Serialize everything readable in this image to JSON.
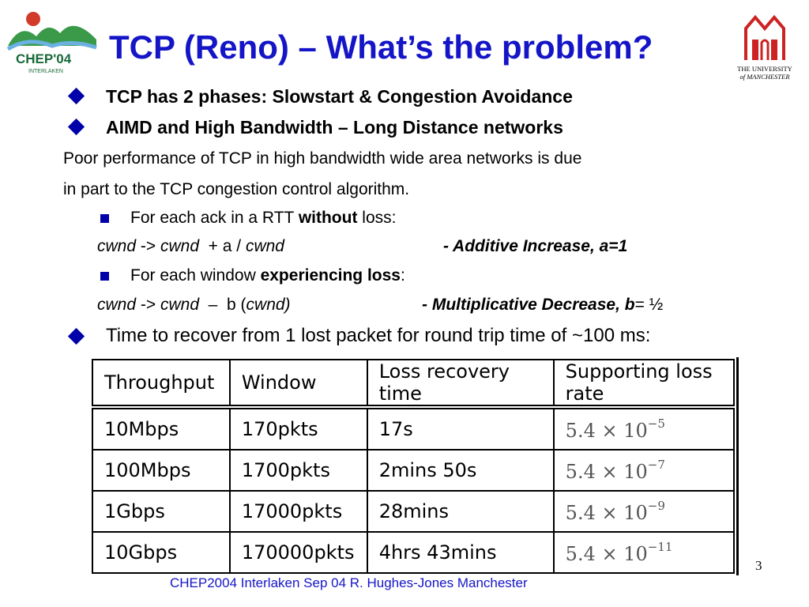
{
  "slide": {
    "title": "TCP (Reno) – What’s the problem?",
    "bullets": [
      "TCP has 2 phases: Slowstart & Congestion Avoidance",
      "AIMD and High Bandwidth – Long Distance networks"
    ],
    "paragraph": [
      "Poor performance of TCP in high bandwidth wide area networks is due",
      "in part to the TCP congestion control algorithm."
    ],
    "sub1": {
      "pre": "For each ack in a RTT ",
      "bold": "without",
      "post": " loss:"
    },
    "formula1": {
      "a": "cwnd",
      "arrow": " -> ",
      "b": "cwnd",
      "op": "  + a / ",
      "c": "cwnd",
      "note": "- Additive Increase, a=1"
    },
    "sub2": {
      "pre": "For each window ",
      "bold": "experiencing loss",
      "post": ":"
    },
    "formula2": {
      "a": "cwnd",
      "arrow": " -> ",
      "b": "cwnd",
      "op": "  –  b (",
      "c": "cwnd)",
      "note_bold": "- Multiplicative Decrease, b",
      "note_tail": "= ½"
    },
    "bullet3": "Time to recover from 1 lost packet for round trip time of ~100 ms:"
  },
  "table": {
    "headers": [
      "Throughput",
      "Window",
      "Loss recovery time",
      "Supporting loss rate"
    ],
    "rows": [
      {
        "throughput": "10Mbps",
        "window": "170pkts",
        "recovery": "17s",
        "rate_base": "5.4 × 10",
        "rate_exp": "−5"
      },
      {
        "throughput": "100Mbps",
        "window": "1700pkts",
        "recovery": "2mins 50s",
        "rate_base": "5.4 × 10",
        "rate_exp": "−7"
      },
      {
        "throughput": "1Gbps",
        "window": "17000pkts",
        "recovery": "28mins",
        "rate_base": "5.4 × 10",
        "rate_exp": "−9"
      },
      {
        "throughput": "10Gbps",
        "window": "170000pkts",
        "recovery": "4hrs 43mins",
        "rate_base": "5.4 × 10",
        "rate_exp": "−11"
      }
    ]
  },
  "footer": "CHEP2004 Interlaken Sep 04 R. Hughes-Jones  Manchester",
  "page_number": "3",
  "logos": {
    "left_text": "CHEP'04",
    "left_subtext": "INTERLAKEN",
    "right_line1": "THE UNIVERSITY",
    "right_line2": "of MANCHESTER"
  },
  "colors": {
    "title": "#1515c8",
    "bullet": "#0000aa",
    "footer": "#1515c8",
    "logo_red": "#cc2222"
  },
  "icons": [
    "chep04-logo-icon",
    "manchester-crest-icon",
    "diamond-bullet-icon",
    "square-bullet-icon"
  ]
}
